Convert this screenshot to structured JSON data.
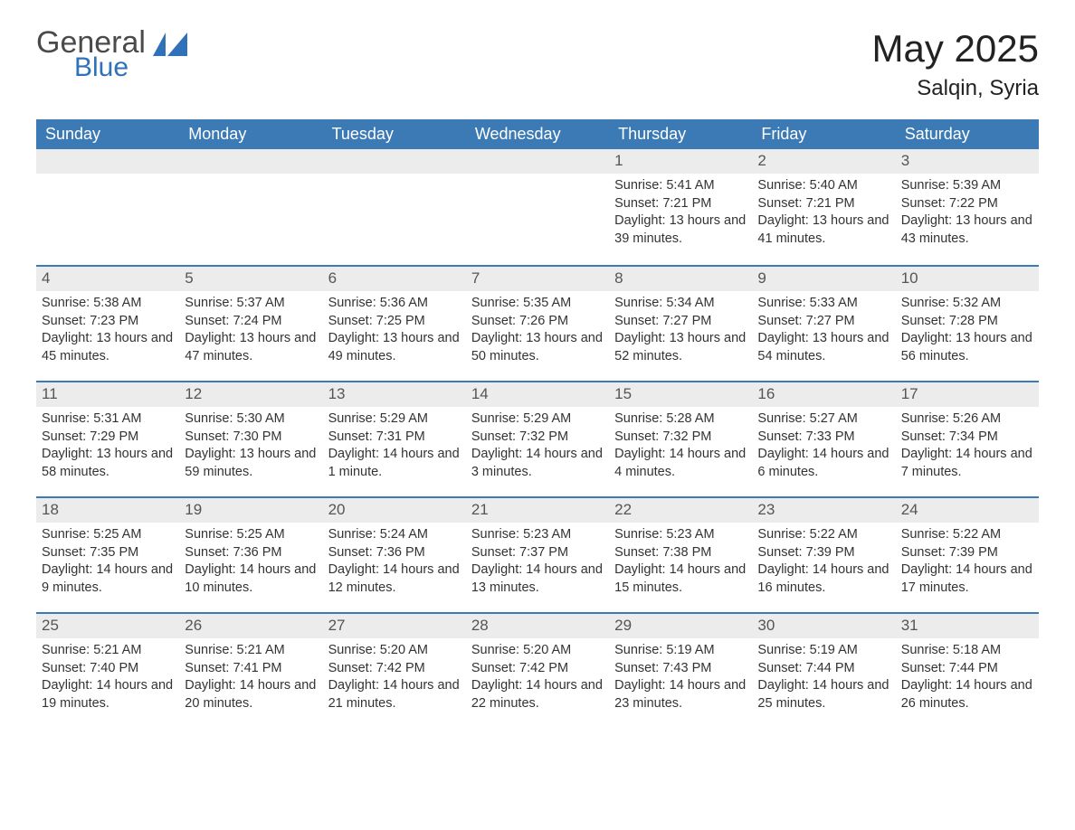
{
  "brand": {
    "word1": "General",
    "word2": "Blue",
    "text_color": "#4a4a4a",
    "accent_color": "#2f72b9"
  },
  "header": {
    "title": "May 2025",
    "location": "Salqin, Syria",
    "title_fontsize": 42,
    "location_fontsize": 24
  },
  "colors": {
    "header_bg": "#3c7ab5",
    "header_text": "#ffffff",
    "row_divider": "#3c7ab5",
    "daynum_bg": "#ececec",
    "body_text": "#333333",
    "background": "#ffffff"
  },
  "weekdays": [
    "Sunday",
    "Monday",
    "Tuesday",
    "Wednesday",
    "Thursday",
    "Friday",
    "Saturday"
  ],
  "weeks": [
    [
      {
        "day": "",
        "sunrise": "",
        "sunset": "",
        "daylight": ""
      },
      {
        "day": "",
        "sunrise": "",
        "sunset": "",
        "daylight": ""
      },
      {
        "day": "",
        "sunrise": "",
        "sunset": "",
        "daylight": ""
      },
      {
        "day": "",
        "sunrise": "",
        "sunset": "",
        "daylight": ""
      },
      {
        "day": "1",
        "sunrise": "Sunrise: 5:41 AM",
        "sunset": "Sunset: 7:21 PM",
        "daylight": "Daylight: 13 hours and 39 minutes."
      },
      {
        "day": "2",
        "sunrise": "Sunrise: 5:40 AM",
        "sunset": "Sunset: 7:21 PM",
        "daylight": "Daylight: 13 hours and 41 minutes."
      },
      {
        "day": "3",
        "sunrise": "Sunrise: 5:39 AM",
        "sunset": "Sunset: 7:22 PM",
        "daylight": "Daylight: 13 hours and 43 minutes."
      }
    ],
    [
      {
        "day": "4",
        "sunrise": "Sunrise: 5:38 AM",
        "sunset": "Sunset: 7:23 PM",
        "daylight": "Daylight: 13 hours and 45 minutes."
      },
      {
        "day": "5",
        "sunrise": "Sunrise: 5:37 AM",
        "sunset": "Sunset: 7:24 PM",
        "daylight": "Daylight: 13 hours and 47 minutes."
      },
      {
        "day": "6",
        "sunrise": "Sunrise: 5:36 AM",
        "sunset": "Sunset: 7:25 PM",
        "daylight": "Daylight: 13 hours and 49 minutes."
      },
      {
        "day": "7",
        "sunrise": "Sunrise: 5:35 AM",
        "sunset": "Sunset: 7:26 PM",
        "daylight": "Daylight: 13 hours and 50 minutes."
      },
      {
        "day": "8",
        "sunrise": "Sunrise: 5:34 AM",
        "sunset": "Sunset: 7:27 PM",
        "daylight": "Daylight: 13 hours and 52 minutes."
      },
      {
        "day": "9",
        "sunrise": "Sunrise: 5:33 AM",
        "sunset": "Sunset: 7:27 PM",
        "daylight": "Daylight: 13 hours and 54 minutes."
      },
      {
        "day": "10",
        "sunrise": "Sunrise: 5:32 AM",
        "sunset": "Sunset: 7:28 PM",
        "daylight": "Daylight: 13 hours and 56 minutes."
      }
    ],
    [
      {
        "day": "11",
        "sunrise": "Sunrise: 5:31 AM",
        "sunset": "Sunset: 7:29 PM",
        "daylight": "Daylight: 13 hours and 58 minutes."
      },
      {
        "day": "12",
        "sunrise": "Sunrise: 5:30 AM",
        "sunset": "Sunset: 7:30 PM",
        "daylight": "Daylight: 13 hours and 59 minutes."
      },
      {
        "day": "13",
        "sunrise": "Sunrise: 5:29 AM",
        "sunset": "Sunset: 7:31 PM",
        "daylight": "Daylight: 14 hours and 1 minute."
      },
      {
        "day": "14",
        "sunrise": "Sunrise: 5:29 AM",
        "sunset": "Sunset: 7:32 PM",
        "daylight": "Daylight: 14 hours and 3 minutes."
      },
      {
        "day": "15",
        "sunrise": "Sunrise: 5:28 AM",
        "sunset": "Sunset: 7:32 PM",
        "daylight": "Daylight: 14 hours and 4 minutes."
      },
      {
        "day": "16",
        "sunrise": "Sunrise: 5:27 AM",
        "sunset": "Sunset: 7:33 PM",
        "daylight": "Daylight: 14 hours and 6 minutes."
      },
      {
        "day": "17",
        "sunrise": "Sunrise: 5:26 AM",
        "sunset": "Sunset: 7:34 PM",
        "daylight": "Daylight: 14 hours and 7 minutes."
      }
    ],
    [
      {
        "day": "18",
        "sunrise": "Sunrise: 5:25 AM",
        "sunset": "Sunset: 7:35 PM",
        "daylight": "Daylight: 14 hours and 9 minutes."
      },
      {
        "day": "19",
        "sunrise": "Sunrise: 5:25 AM",
        "sunset": "Sunset: 7:36 PM",
        "daylight": "Daylight: 14 hours and 10 minutes."
      },
      {
        "day": "20",
        "sunrise": "Sunrise: 5:24 AM",
        "sunset": "Sunset: 7:36 PM",
        "daylight": "Daylight: 14 hours and 12 minutes."
      },
      {
        "day": "21",
        "sunrise": "Sunrise: 5:23 AM",
        "sunset": "Sunset: 7:37 PM",
        "daylight": "Daylight: 14 hours and 13 minutes."
      },
      {
        "day": "22",
        "sunrise": "Sunrise: 5:23 AM",
        "sunset": "Sunset: 7:38 PM",
        "daylight": "Daylight: 14 hours and 15 minutes."
      },
      {
        "day": "23",
        "sunrise": "Sunrise: 5:22 AM",
        "sunset": "Sunset: 7:39 PM",
        "daylight": "Daylight: 14 hours and 16 minutes."
      },
      {
        "day": "24",
        "sunrise": "Sunrise: 5:22 AM",
        "sunset": "Sunset: 7:39 PM",
        "daylight": "Daylight: 14 hours and 17 minutes."
      }
    ],
    [
      {
        "day": "25",
        "sunrise": "Sunrise: 5:21 AM",
        "sunset": "Sunset: 7:40 PM",
        "daylight": "Daylight: 14 hours and 19 minutes."
      },
      {
        "day": "26",
        "sunrise": "Sunrise: 5:21 AM",
        "sunset": "Sunset: 7:41 PM",
        "daylight": "Daylight: 14 hours and 20 minutes."
      },
      {
        "day": "27",
        "sunrise": "Sunrise: 5:20 AM",
        "sunset": "Sunset: 7:42 PM",
        "daylight": "Daylight: 14 hours and 21 minutes."
      },
      {
        "day": "28",
        "sunrise": "Sunrise: 5:20 AM",
        "sunset": "Sunset: 7:42 PM",
        "daylight": "Daylight: 14 hours and 22 minutes."
      },
      {
        "day": "29",
        "sunrise": "Sunrise: 5:19 AM",
        "sunset": "Sunset: 7:43 PM",
        "daylight": "Daylight: 14 hours and 23 minutes."
      },
      {
        "day": "30",
        "sunrise": "Sunrise: 5:19 AM",
        "sunset": "Sunset: 7:44 PM",
        "daylight": "Daylight: 14 hours and 25 minutes."
      },
      {
        "day": "31",
        "sunrise": "Sunrise: 5:18 AM",
        "sunset": "Sunset: 7:44 PM",
        "daylight": "Daylight: 14 hours and 26 minutes."
      }
    ]
  ]
}
